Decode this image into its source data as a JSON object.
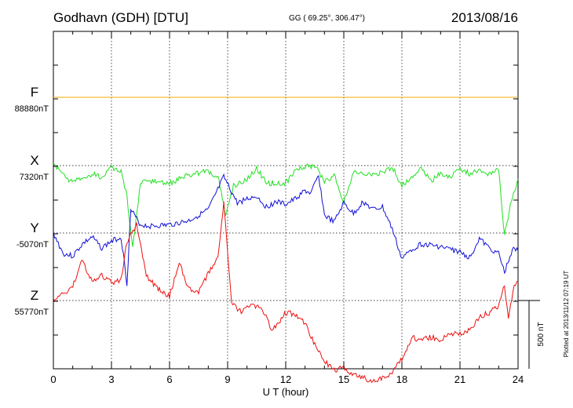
{
  "header": {
    "station": "Godhavn (GDH)  [DTU]",
    "coords": "GG ( 69.25°, 306.47°)",
    "date": "2013/08/16"
  },
  "footer": {
    "plotted": "Plotted at 2013/11/12 07:19 UT"
  },
  "chart_data": {
    "type": "line",
    "xlabel": "U T (hour)",
    "xlim": [
      0,
      24
    ],
    "xticks": [
      0,
      3,
      6,
      9,
      12,
      15,
      18,
      21,
      24
    ],
    "grid": true,
    "scale_bar": {
      "label": "500 nT",
      "value_nT": 500
    },
    "series": [
      {
        "name": "F",
        "baseline_label": "88880nT",
        "color": "#f0a800",
        "points": [
          [
            0,
            0
          ],
          [
            24,
            0
          ]
        ]
      },
      {
        "name": "X",
        "baseline_label": "7320nT",
        "color": "#22e022",
        "points": [
          [
            0,
            0
          ],
          [
            0.3,
            -30
          ],
          [
            0.8,
            -100
          ],
          [
            1.5,
            -110
          ],
          [
            2,
            -60
          ],
          [
            2.5,
            -90
          ],
          [
            3,
            -20
          ],
          [
            3.5,
            -40
          ],
          [
            3.8,
            -230
          ],
          [
            4.1,
            -600
          ],
          [
            4.5,
            -130
          ],
          [
            5,
            -110
          ],
          [
            6,
            -130
          ],
          [
            7,
            -70
          ],
          [
            8,
            -40
          ],
          [
            8.5,
            -80
          ],
          [
            8.9,
            -360
          ],
          [
            9.3,
            -150
          ],
          [
            10,
            -100
          ],
          [
            10.5,
            -20
          ],
          [
            11,
            -130
          ],
          [
            12,
            -130
          ],
          [
            12.5,
            -30
          ],
          [
            13,
            -10
          ],
          [
            13.5,
            0
          ],
          [
            14,
            -120
          ],
          [
            14.5,
            -70
          ],
          [
            15,
            -270
          ],
          [
            15.5,
            -50
          ],
          [
            16,
            -70
          ],
          [
            16.5,
            -60
          ],
          [
            17,
            -50
          ],
          [
            17.5,
            -10
          ],
          [
            18,
            -150
          ],
          [
            18.5,
            -80
          ],
          [
            19,
            -20
          ],
          [
            19.5,
            -110
          ],
          [
            20,
            -60
          ],
          [
            20.5,
            -80
          ],
          [
            21,
            -20
          ],
          [
            21.5,
            -60
          ],
          [
            22,
            -40
          ],
          [
            22.5,
            -60
          ],
          [
            23,
            -20
          ],
          [
            23.3,
            -520
          ],
          [
            23.6,
            -280
          ],
          [
            24,
            -100
          ]
        ]
      },
      {
        "name": "Y",
        "baseline_label": "-5070nT",
        "color": "#1010d8",
        "points": [
          [
            0,
            0
          ],
          [
            0.5,
            -150
          ],
          [
            1,
            -170
          ],
          [
            1.5,
            -80
          ],
          [
            2,
            -30
          ],
          [
            2.5,
            -110
          ],
          [
            3,
            -60
          ],
          [
            3.5,
            -30
          ],
          [
            3.8,
            -370
          ],
          [
            4,
            170
          ],
          [
            4.5,
            60
          ],
          [
            5,
            50
          ],
          [
            6,
            60
          ],
          [
            7,
            90
          ],
          [
            8,
            170
          ],
          [
            8.8,
            410
          ],
          [
            9.5,
            220
          ],
          [
            10,
            250
          ],
          [
            10.5,
            270
          ],
          [
            11,
            190
          ],
          [
            11.5,
            230
          ],
          [
            12,
            210
          ],
          [
            12.5,
            250
          ],
          [
            13,
            310
          ],
          [
            13.3,
            290
          ],
          [
            13.7,
            420
          ],
          [
            14,
            130
          ],
          [
            14.5,
            80
          ],
          [
            15,
            220
          ],
          [
            15.5,
            140
          ],
          [
            16,
            230
          ],
          [
            16.5,
            170
          ],
          [
            17,
            190
          ],
          [
            17.5,
            30
          ],
          [
            18,
            -190
          ],
          [
            18.5,
            -120
          ],
          [
            19,
            -80
          ],
          [
            19.5,
            -90
          ],
          [
            20,
            -100
          ],
          [
            20.5,
            -120
          ],
          [
            21,
            -140
          ],
          [
            21.5,
            -180
          ],
          [
            22,
            -40
          ],
          [
            22.5,
            -110
          ],
          [
            23,
            -150
          ],
          [
            23.3,
            -290
          ],
          [
            23.7,
            -120
          ],
          [
            24,
            -130
          ]
        ]
      },
      {
        "name": "Z",
        "baseline_label": "55770nT",
        "color": "#ee1010",
        "points": [
          [
            0,
            0
          ],
          [
            0.5,
            50
          ],
          [
            1,
            100
          ],
          [
            1.5,
            300
          ],
          [
            2,
            130
          ],
          [
            2.5,
            180
          ],
          [
            3,
            130
          ],
          [
            3.5,
            150
          ],
          [
            3.8,
            430
          ],
          [
            4.3,
            560
          ],
          [
            4.8,
            180
          ],
          [
            5.3,
            100
          ],
          [
            6,
            30
          ],
          [
            6.5,
            280
          ],
          [
            7,
            80
          ],
          [
            7.5,
            60
          ],
          [
            8,
            200
          ],
          [
            8.5,
            320
          ],
          [
            8.8,
            720
          ],
          [
            9.2,
            -20
          ],
          [
            9.7,
            -80
          ],
          [
            10.2,
            -30
          ],
          [
            10.8,
            -60
          ],
          [
            11.3,
            -220
          ],
          [
            12,
            -90
          ],
          [
            12.5,
            -100
          ],
          [
            13,
            -170
          ],
          [
            13.5,
            -320
          ],
          [
            14,
            -440
          ],
          [
            14.5,
            -510
          ],
          [
            15,
            -490
          ],
          [
            15.5,
            -550
          ],
          [
            16,
            -560
          ],
          [
            16.5,
            -600
          ],
          [
            17,
            -560
          ],
          [
            17.5,
            -530
          ],
          [
            18,
            -430
          ],
          [
            18.5,
            -270
          ],
          [
            19,
            -290
          ],
          [
            19.5,
            -270
          ],
          [
            20,
            -290
          ],
          [
            20.5,
            -240
          ],
          [
            21,
            -240
          ],
          [
            21.5,
            -220
          ],
          [
            22,
            -120
          ],
          [
            22.5,
            -90
          ],
          [
            23,
            -40
          ],
          [
            23.3,
            120
          ],
          [
            23.5,
            -150
          ],
          [
            23.8,
            120
          ],
          [
            24,
            140
          ]
        ]
      }
    ]
  }
}
